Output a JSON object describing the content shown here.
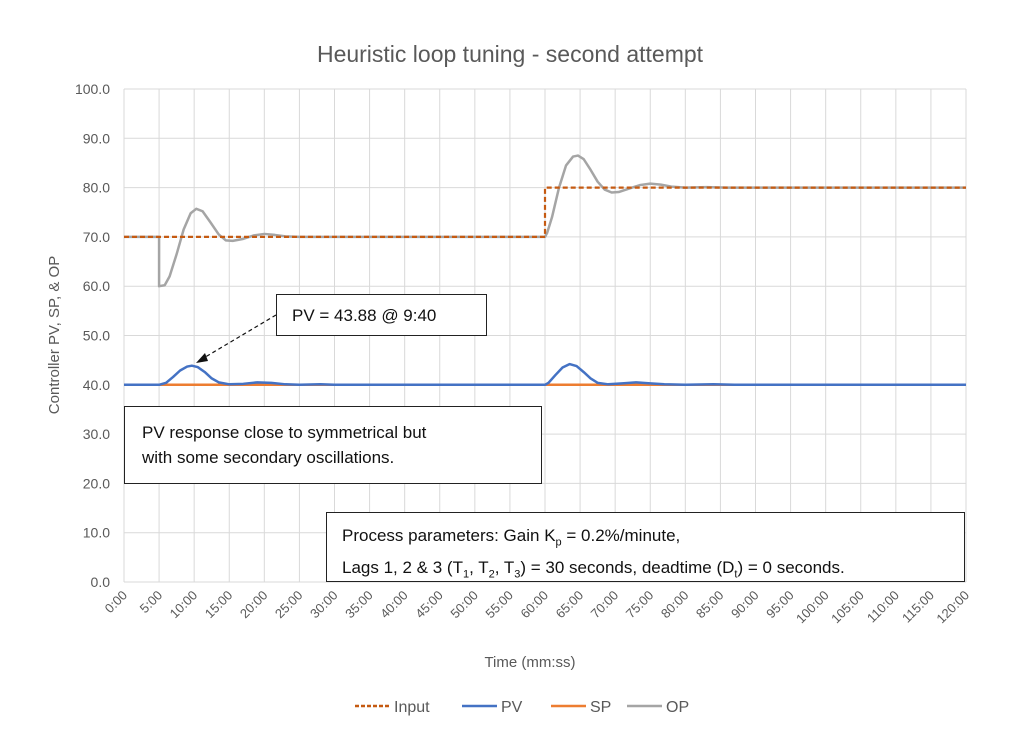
{
  "chart_data": {
    "type": "line",
    "title": "Heuristic loop tuning - second attempt",
    "xlabel": "Time (mm:ss)",
    "ylabel": "Controller PV, SP, & OP",
    "xlim": [
      0,
      120
    ],
    "ylim": [
      0,
      100
    ],
    "grid": true,
    "legend_position": "bottom",
    "x_tick_labels": [
      "0:00",
      "5:00",
      "10:00",
      "15:00",
      "20:00",
      "25:00",
      "30:00",
      "35:00",
      "40:00",
      "45:00",
      "50:00",
      "55:00",
      "60:00",
      "65:00",
      "70:00",
      "75:00",
      "80:00",
      "85:00",
      "90:00",
      "95:00",
      "100:00",
      "105:00",
      "110:00",
      "115:00",
      "120:00"
    ],
    "y_tick_labels": [
      "0.0",
      "10.0",
      "20.0",
      "30.0",
      "40.0",
      "50.0",
      "60.0",
      "70.0",
      "80.0",
      "90.0",
      "100.0"
    ],
    "x_unit": "minutes",
    "series": [
      {
        "name": "Input",
        "color": "#c55a11",
        "dash": true,
        "points": [
          [
            0,
            70
          ],
          [
            60,
            70
          ],
          [
            60,
            80
          ],
          [
            120,
            80
          ]
        ]
      },
      {
        "name": "PV",
        "color": "#4472c4",
        "dash": false,
        "points": [
          [
            0,
            40
          ],
          [
            5,
            40
          ],
          [
            6,
            40.4
          ],
          [
            7,
            41.6
          ],
          [
            8,
            42.9
          ],
          [
            9,
            43.7
          ],
          [
            9.67,
            43.88
          ],
          [
            10.5,
            43.6
          ],
          [
            11.5,
            42.6
          ],
          [
            12.5,
            41.3
          ],
          [
            13.5,
            40.5
          ],
          [
            15,
            40.1
          ],
          [
            17,
            40.2
          ],
          [
            19,
            40.5
          ],
          [
            21,
            40.4
          ],
          [
            23,
            40.1
          ],
          [
            25,
            40
          ],
          [
            28,
            40.1
          ],
          [
            30,
            40
          ],
          [
            60,
            40
          ],
          [
            60.5,
            40.4
          ],
          [
            61.5,
            42
          ],
          [
            62.5,
            43.5
          ],
          [
            63.5,
            44.2
          ],
          [
            64.5,
            43.8
          ],
          [
            65.5,
            42.6
          ],
          [
            66.5,
            41.3
          ],
          [
            67.5,
            40.4
          ],
          [
            69,
            40.1
          ],
          [
            71,
            40.3
          ],
          [
            73,
            40.5
          ],
          [
            75,
            40.3
          ],
          [
            77,
            40.1
          ],
          [
            80,
            40
          ],
          [
            84,
            40.1
          ],
          [
            87,
            40
          ],
          [
            120,
            40
          ]
        ]
      },
      {
        "name": "SP",
        "color": "#ed7d31",
        "dash": false,
        "points": [
          [
            0,
            40
          ],
          [
            120,
            40
          ]
        ]
      },
      {
        "name": "OP",
        "color": "#a5a5a5",
        "dash": false,
        "points": [
          [
            0,
            70
          ],
          [
            5,
            70
          ],
          [
            5,
            60
          ],
          [
            5.8,
            60.2
          ],
          [
            6.5,
            62
          ],
          [
            7.5,
            66.5
          ],
          [
            8.5,
            71.5
          ],
          [
            9.5,
            74.8
          ],
          [
            10.3,
            75.7
          ],
          [
            11.2,
            75.2
          ],
          [
            12.3,
            73
          ],
          [
            13.5,
            70.5
          ],
          [
            14.5,
            69.3
          ],
          [
            15.5,
            69.2
          ],
          [
            17,
            69.6
          ],
          [
            18.5,
            70.3
          ],
          [
            20,
            70.6
          ],
          [
            21.5,
            70.4
          ],
          [
            23,
            70.1
          ],
          [
            25,
            70
          ],
          [
            60,
            70
          ],
          [
            60.3,
            70.8
          ],
          [
            61,
            74
          ],
          [
            62,
            80
          ],
          [
            63,
            84.5
          ],
          [
            64,
            86.3
          ],
          [
            64.7,
            86.5
          ],
          [
            65.5,
            85.8
          ],
          [
            66.5,
            83.6
          ],
          [
            67.5,
            81.2
          ],
          [
            68.5,
            79.6
          ],
          [
            69.5,
            79
          ],
          [
            70.5,
            79.1
          ],
          [
            72,
            79.8
          ],
          [
            73.5,
            80.5
          ],
          [
            75,
            80.8
          ],
          [
            76.5,
            80.6
          ],
          [
            78,
            80.2
          ],
          [
            80,
            80
          ],
          [
            83,
            80.1
          ],
          [
            86,
            80
          ],
          [
            120,
            80
          ]
        ]
      }
    ]
  },
  "annotations": {
    "callout": "PV = 43.88 @ 9:40",
    "note1_line1": "PV response close to symmetrical but",
    "note1_line2": "with some secondary oscillations.",
    "note2_line1_a": "Process parameters: Gain K",
    "note2_line1_sub": "p",
    "note2_line1_b": " = 0.2%/minute,",
    "note2_line2_a": "Lags 1, 2 & 3 (T",
    "note2_line2_s1": "1",
    "note2_line2_b": ", T",
    "note2_line2_s2": "2",
    "note2_line2_c": ", T",
    "note2_line2_s3": "3",
    "note2_line2_d": ") = 30 seconds, deadtime (D",
    "note2_line2_s4": "t",
    "note2_line2_e": ") = 0 seconds."
  }
}
